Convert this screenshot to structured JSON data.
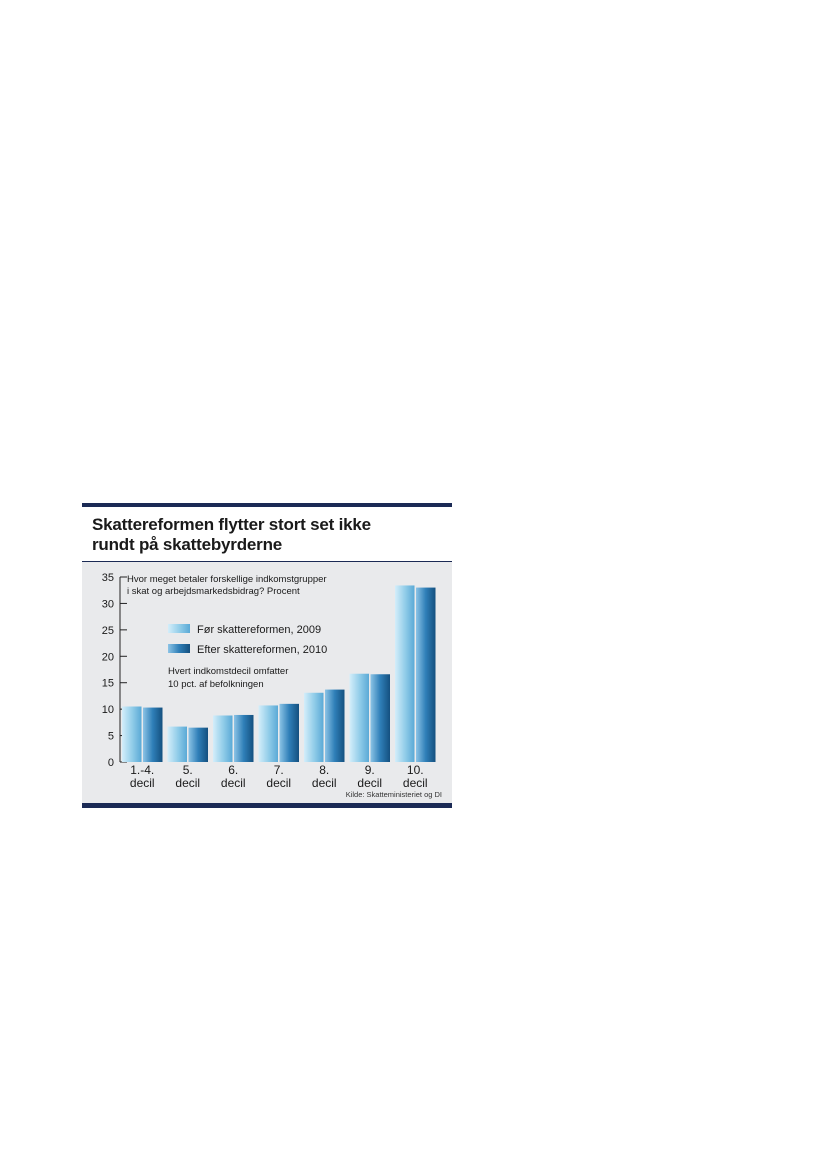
{
  "chart_data": {
    "type": "bar",
    "title_lines": [
      "Skattereformen flytter stort set ikke",
      "rundt på skattebyrderne"
    ],
    "question_lines": [
      "Hvor meget betaler forskellige indkomstgrupper",
      "i skat og arbejdsmarkedsbidrag? Procent"
    ],
    "note_lines": [
      "Hvert indkomstdecil omfatter",
      "10 pct. af befolkningen"
    ],
    "source": "Kilde: Skatteministeriet og DI",
    "categories": [
      [
        "1.-4.",
        "decil"
      ],
      [
        "5.",
        "decil"
      ],
      [
        "6.",
        "decil"
      ],
      [
        "7.",
        "decil"
      ],
      [
        "8.",
        "decil"
      ],
      [
        "9.",
        "decil"
      ],
      [
        "10.",
        "decil"
      ]
    ],
    "series": [
      {
        "name": "Før skattereformen, 2009",
        "color": "#8ecbe8",
        "values": [
          10.5,
          6.7,
          8.8,
          10.7,
          13.1,
          16.7,
          33.4
        ]
      },
      {
        "name": "Efter skattereformen, 2010",
        "color": "#2f7fb8",
        "values": [
          10.3,
          6.5,
          8.9,
          11.0,
          13.7,
          16.6,
          33.0
        ]
      }
    ],
    "yticks": [
      "0",
      "5",
      "10",
      "15",
      "20",
      "25",
      "30",
      "35"
    ],
    "ylim": [
      0,
      35
    ],
    "legend_position": "inside-top-left"
  }
}
